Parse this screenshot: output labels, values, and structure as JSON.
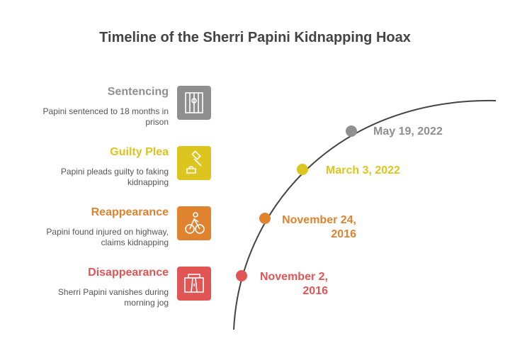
{
  "header": {
    "title": "Timeline of the Sherri Papini Kidnapping Hoax"
  },
  "events": [
    {
      "heading": "Sentencing",
      "description": "Papini sentenced to 18 months in prison",
      "date": "May 19, 2022",
      "color": "#8f8f8f"
    },
    {
      "heading": "Guilty Plea",
      "description": "Papini pleads guilty to faking kidnapping",
      "date": "March 3, 2022",
      "color": "#dcc51e"
    },
    {
      "heading": "Reappearance",
      "description": "Papini found injured on highway, claims kidnapping",
      "date": "November 24, 2016",
      "color": "#e0832f"
    },
    {
      "heading": "Disappearance",
      "description": "Sherri Papini vanishes during morning jog",
      "date": "November 2, 2016",
      "color": "#e25555"
    }
  ]
}
